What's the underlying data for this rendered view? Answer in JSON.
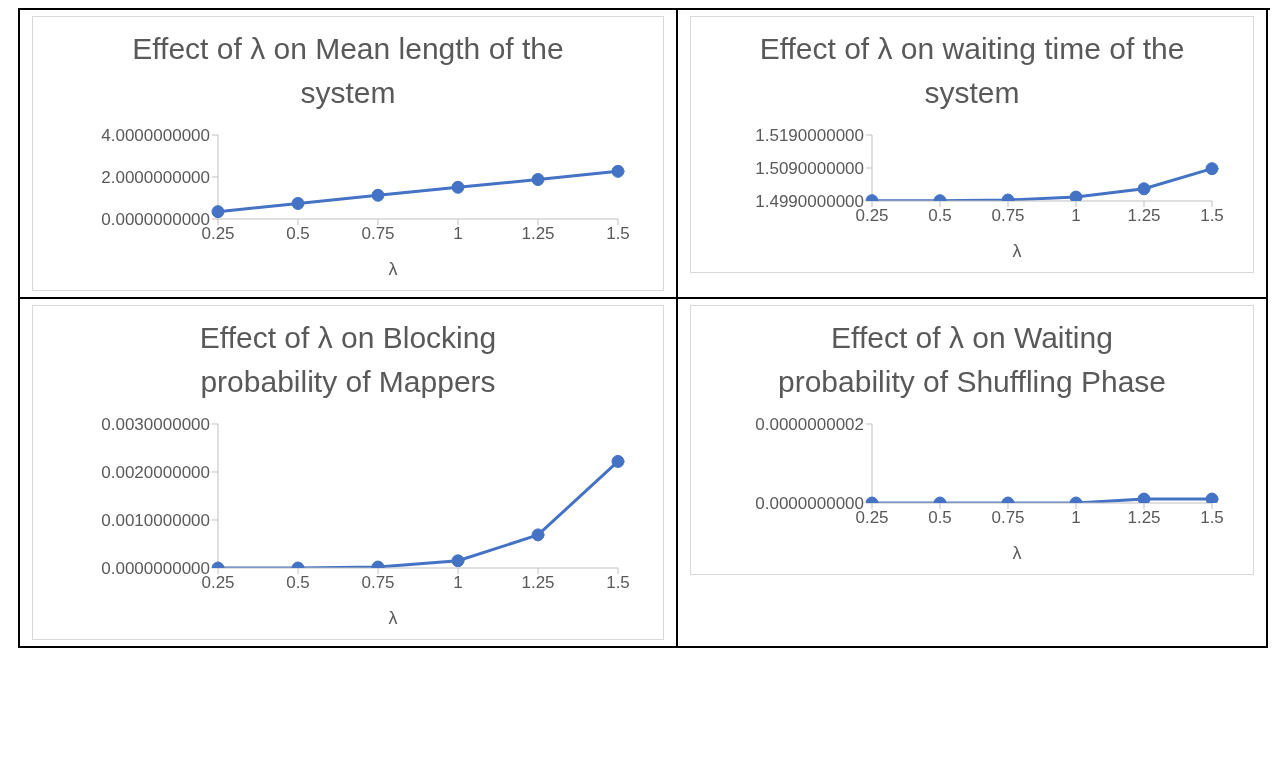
{
  "chart_data": [
    {
      "type": "line",
      "title": "Effect of λ on Mean length of the system",
      "xlabel": "λ",
      "categories": [
        "0.25",
        "0.5",
        "0.75",
        "1",
        "1.25",
        "1.5"
      ],
      "values": [
        0.35,
        0.74,
        1.13,
        1.51,
        1.88,
        2.27
      ],
      "color": "#4472c4",
      "ylim": [
        0,
        4
      ],
      "yticks": [
        {
          "value": 0,
          "label": "0.0000000000"
        },
        {
          "value": 2,
          "label": "2.0000000000"
        },
        {
          "value": 4,
          "label": "4.0000000000"
        }
      ],
      "grid": false,
      "legend": false,
      "marker": "circle",
      "line_style": "solid"
    },
    {
      "type": "line",
      "title": "Effect of λ on waiting time of the system",
      "xlabel": "λ",
      "categories": [
        "0.25",
        "0.5",
        "0.75",
        "1",
        "1.25",
        "1.5"
      ],
      "values": [
        1.4991,
        1.4991,
        1.4993,
        1.5002,
        1.5027,
        1.5088
      ],
      "color": "#4472c4",
      "ylim": [
        1.499,
        1.519
      ],
      "yticks": [
        {
          "value": 1.499,
          "label": "1.4990000000"
        },
        {
          "value": 1.509,
          "label": "1.5090000000"
        },
        {
          "value": 1.519,
          "label": "1.5190000000"
        }
      ],
      "grid": false,
      "legend": false,
      "marker": "circle",
      "line_style": "solid"
    },
    {
      "type": "line",
      "title": "Effect of λ on Blocking probability of Mappers",
      "xlabel": "λ",
      "categories": [
        "0.25",
        "0.5",
        "0.75",
        "1",
        "1.25",
        "1.5"
      ],
      "values": [
        0,
        0,
        2e-05,
        0.00015,
        0.00069,
        0.00222
      ],
      "color": "#4472c4",
      "ylim": [
        0,
        0.003
      ],
      "yticks": [
        {
          "value": 0,
          "label": "0.0000000000"
        },
        {
          "value": 0.001,
          "label": "0.0010000000"
        },
        {
          "value": 0.002,
          "label": "0.0020000000"
        },
        {
          "value": 0.003,
          "label": "0.0030000000"
        }
      ],
      "grid": false,
      "legend": false,
      "marker": "circle",
      "line_style": "solid"
    },
    {
      "type": "line",
      "title": "Effect of λ on Waiting probability of Shuffling Phase",
      "xlabel": "λ",
      "categories": [
        "0.25",
        "0.5",
        "0.75",
        "1",
        "1.25",
        "1.5"
      ],
      "values": [
        0,
        0,
        0,
        0,
        1e-11,
        1e-11
      ],
      "color": "#4472c4",
      "ylim": [
        0,
        2e-10
      ],
      "yticks": [
        {
          "value": 0,
          "label": "0.0000000000"
        },
        {
          "value": 2e-10,
          "label": "0.0000000002"
        }
      ],
      "grid": false,
      "legend": false,
      "marker": "circle",
      "line_style": "solid"
    }
  ]
}
